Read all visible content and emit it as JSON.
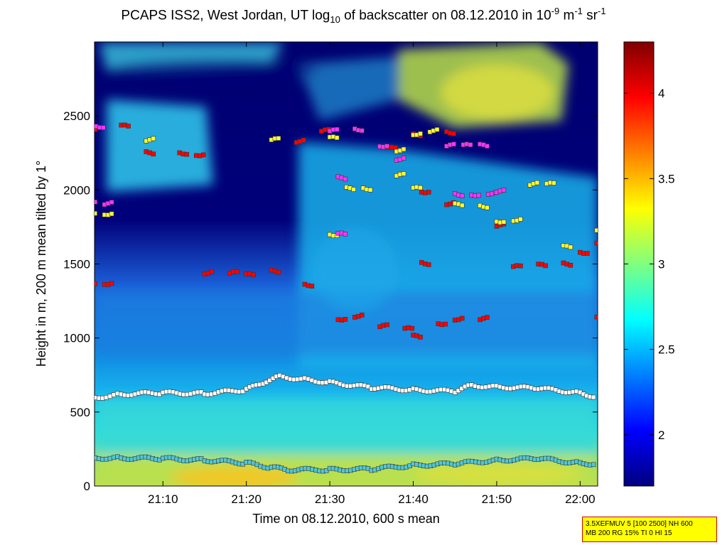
{
  "title": {
    "prefix": "PCAPS ISS2, West Jordan, UT log",
    "log_sub": "10",
    "middle": " of backscatter on 08.12.2010 in 10",
    "exp1": "-9",
    "unit1": " m",
    "exp2": "-1",
    "unit2": " sr",
    "exp3": "-1"
  },
  "info_box": {
    "line1": "3.5XEFMUV 5 [100 2500] NH 600",
    "line2": "MB 200 RG 15% TI 0 HI 15"
  },
  "chart_data": {
    "type": "heatmap",
    "xlabel": "Time on 08.12.2010, 600 s mean",
    "ylabel": "Height in m, 200 m mean tilted by 1°",
    "xlim_minutes": [
      21.03,
      22.035
    ],
    "x_ticks": [
      "21:10",
      "21:20",
      "21:30",
      "21:40",
      "21:50",
      "22:00"
    ],
    "ylim": [
      0,
      3000
    ],
    "y_ticks": [
      0,
      500,
      1000,
      1500,
      2000,
      2500
    ],
    "colorbar": {
      "range": [
        1.7,
        4.3
      ],
      "ticks": [
        "2",
        "2.5",
        "3",
        "3.5",
        "4"
      ],
      "colormap": "jet"
    },
    "layer_series": [
      {
        "marker_color": "#4fc8d8",
        "description": "lowest layer",
        "points": [
          [
            "21:01",
            190
          ],
          [
            "21:05",
            190
          ],
          [
            "21:10",
            185
          ],
          [
            "21:15",
            175
          ],
          [
            "21:20",
            155
          ],
          [
            "21:23",
            125
          ],
          [
            "21:25",
            110
          ],
          [
            "21:30",
            110
          ],
          [
            "21:35",
            115
          ],
          [
            "21:40",
            140
          ],
          [
            "21:45",
            150
          ],
          [
            "21:50",
            175
          ],
          [
            "21:55",
            185
          ],
          [
            "22:00",
            155
          ],
          [
            "22:02",
            150
          ]
        ]
      },
      {
        "marker_color": "#ffffff",
        "description": "mixing layer",
        "points": [
          [
            "21:01",
            590
          ],
          [
            "21:05",
            620
          ],
          [
            "21:10",
            630
          ],
          [
            "21:15",
            625
          ],
          [
            "21:20",
            650
          ],
          [
            "21:22",
            700
          ],
          [
            "21:24",
            740
          ],
          [
            "21:27",
            720
          ],
          [
            "21:30",
            700
          ],
          [
            "21:35",
            665
          ],
          [
            "21:40",
            650
          ],
          [
            "21:45",
            640
          ],
          [
            "21:47",
            680
          ],
          [
            "21:50",
            670
          ],
          [
            "21:55",
            660
          ],
          [
            "22:00",
            630
          ],
          [
            "22:02",
            600
          ]
        ]
      },
      {
        "marker_color": "#ff0000",
        "description": "upper layers",
        "points": [
          [
            "21:01",
            1375
          ],
          [
            "21:03",
            1370
          ],
          [
            "21:15",
            1440
          ],
          [
            "21:18",
            1440
          ],
          [
            "21:20",
            1425
          ],
          [
            "21:23",
            1450
          ],
          [
            "21:27",
            1360
          ],
          [
            "21:31",
            1130
          ],
          [
            "21:33",
            1150
          ],
          [
            "21:36",
            1080
          ],
          [
            "21:39",
            1060
          ],
          [
            "21:40",
            1010
          ],
          [
            "21:41",
            1505
          ],
          [
            "21:43",
            1100
          ],
          [
            "21:45",
            1130
          ],
          [
            "21:48",
            1130
          ],
          [
            "21:52",
            1480
          ],
          [
            "21:55",
            1490
          ],
          [
            "21:58",
            1500
          ],
          [
            "22:00",
            1580
          ],
          [
            "22:02",
            1650
          ],
          [
            "22:02",
            1150
          ],
          [
            "21:01",
            2400
          ],
          [
            "21:05",
            2430
          ],
          [
            "21:08",
            2250
          ],
          [
            "21:12",
            2250
          ],
          [
            "21:14",
            2240
          ],
          [
            "21:26",
            2330
          ],
          [
            "21:29",
            2400
          ],
          [
            "21:37",
            2280
          ],
          [
            "21:40",
            2370
          ],
          [
            "21:44",
            2390
          ],
          [
            "21:41",
            1990
          ],
          [
            "21:44",
            1910
          ],
          [
            "21:50",
            1760
          ]
        ]
      },
      {
        "marker_color": "#ffff33",
        "description": "intermediate layers",
        "points": [
          [
            "21:01",
            1850
          ],
          [
            "21:03",
            1840
          ],
          [
            "21:08",
            2340
          ],
          [
            "21:23",
            2340
          ],
          [
            "21:30",
            2350
          ],
          [
            "21:32",
            2010
          ],
          [
            "21:34",
            2010
          ],
          [
            "21:36",
            2300
          ],
          [
            "21:38",
            2270
          ],
          [
            "21:38",
            2100
          ],
          [
            "21:40",
            2010
          ],
          [
            "21:45",
            1900
          ],
          [
            "21:48",
            1890
          ],
          [
            "21:50",
            1790
          ],
          [
            "21:52",
            1800
          ],
          [
            "21:54",
            2040
          ],
          [
            "21:56",
            2040
          ],
          [
            "21:58",
            1615
          ],
          [
            "22:02",
            1720
          ],
          [
            "21:30",
            1700
          ],
          [
            "21:40",
            2380
          ],
          [
            "21:42",
            2400
          ]
        ]
      },
      {
        "marker_color": "#ff33ff",
        "description": "marked layers",
        "points": [
          [
            "21:02",
            2430
          ],
          [
            "21:01",
            1920
          ],
          [
            "21:03",
            1910
          ],
          [
            "21:30",
            2400
          ],
          [
            "21:31",
            1700
          ],
          [
            "21:31",
            2080
          ],
          [
            "21:33",
            2410
          ],
          [
            "21:36",
            2300
          ],
          [
            "21:38",
            2210
          ],
          [
            "21:44",
            2300
          ],
          [
            "21:46",
            2300
          ],
          [
            "21:48",
            2300
          ],
          [
            "21:45",
            1970
          ],
          [
            "21:47",
            1970
          ],
          [
            "21:49",
            1980
          ],
          [
            "21:50",
            1990
          ]
        ]
      }
    ]
  }
}
